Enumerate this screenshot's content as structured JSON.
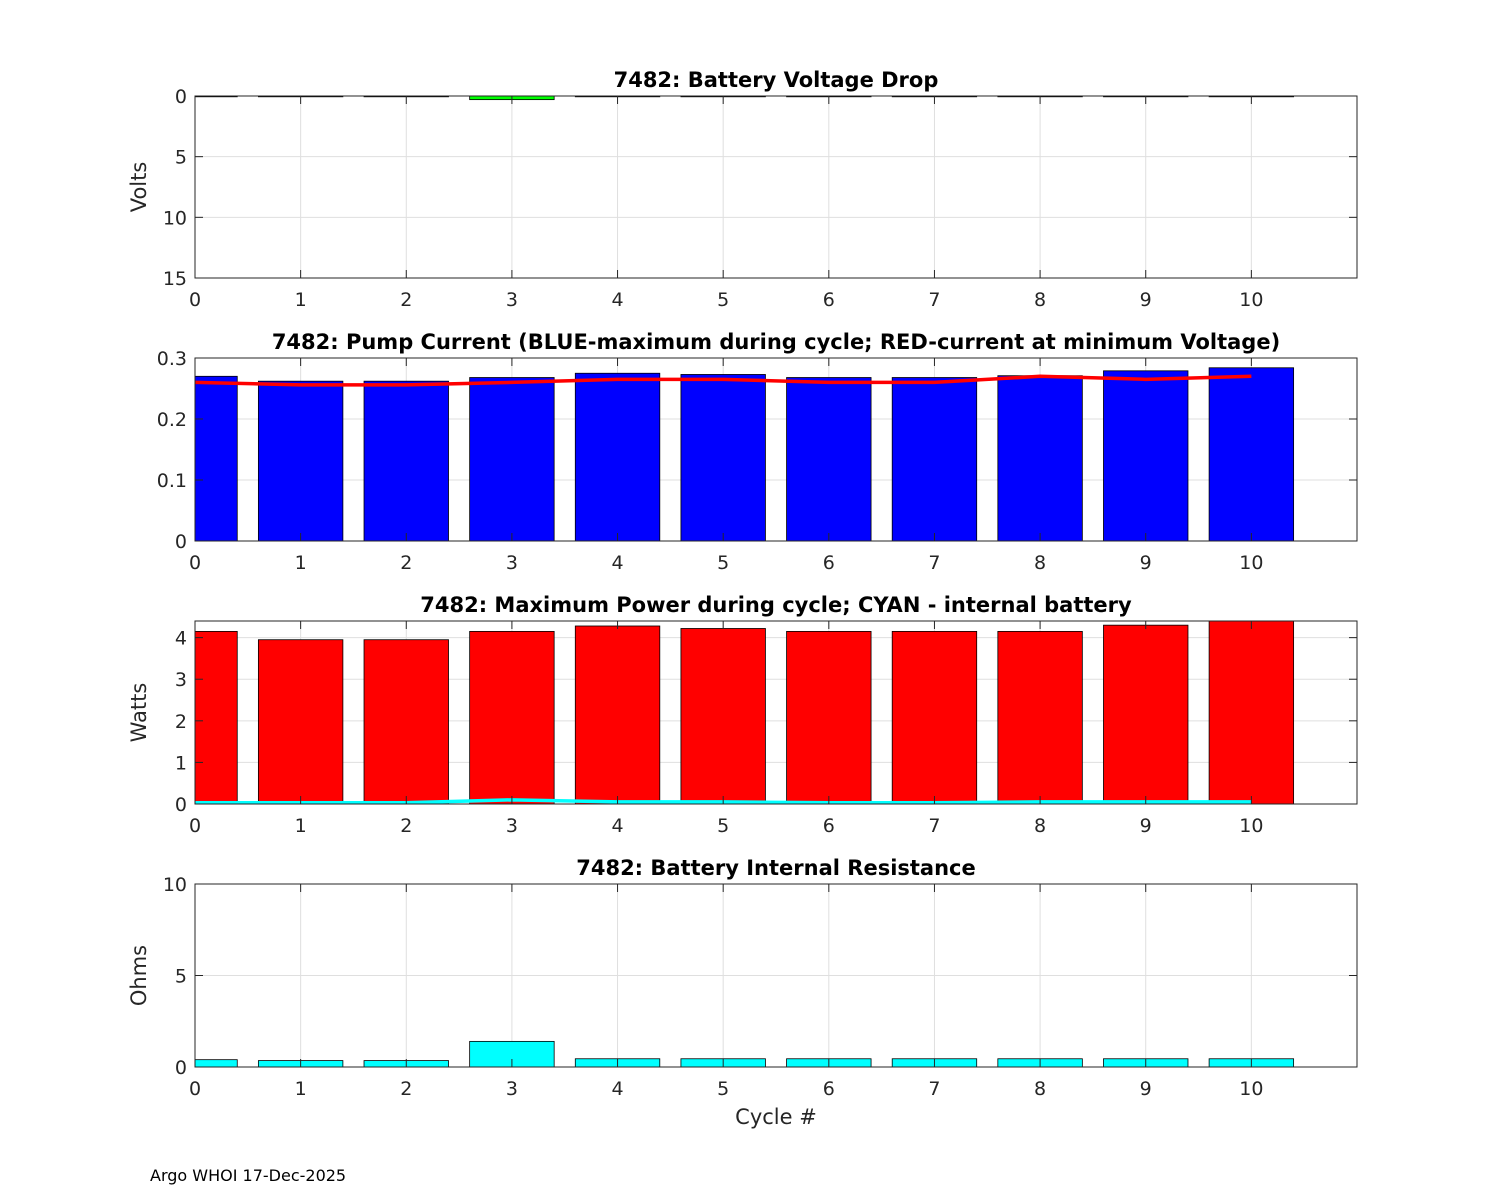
{
  "footer": "Argo WHOI 17-Dec-2025",
  "chart_data": [
    {
      "type": "bar",
      "title": "7482: Battery Voltage Drop",
      "xlabel": "",
      "ylabel": "Volts",
      "ylim": [
        0,
        15
      ],
      "y_reversed": true,
      "yticks": [
        "0",
        "5",
        "10",
        "15"
      ],
      "xticks": [
        "0",
        "1",
        "2",
        "3",
        "4",
        "5",
        "6",
        "7",
        "8",
        "9",
        "10"
      ],
      "grid": true,
      "categories": [
        0,
        1,
        2,
        3,
        4,
        5,
        6,
        7,
        8,
        9,
        10
      ],
      "series": [
        {
          "values": [
            0.05,
            0.05,
            0.05,
            0.3,
            0.05,
            0.05,
            0.05,
            0.05,
            0.05,
            0.05,
            0.05
          ],
          "color": "#00ff00"
        }
      ]
    },
    {
      "type": "bar",
      "title": "7482: Pump Current (BLUE-maximum during cycle; RED-current at minimum Voltage)",
      "xlabel": "",
      "ylabel": "",
      "ylim": [
        0,
        0.3
      ],
      "yticks": [
        "0",
        "0.1",
        "0.2",
        "0.3"
      ],
      "xticks": [
        "0",
        "1",
        "2",
        "3",
        "4",
        "5",
        "6",
        "7",
        "8",
        "9",
        "10"
      ],
      "grid": true,
      "categories": [
        0,
        1,
        2,
        3,
        4,
        5,
        6,
        7,
        8,
        9,
        10
      ],
      "series": [
        {
          "values": [
            0.27,
            0.262,
            0.262,
            0.268,
            0.275,
            0.273,
            0.268,
            0.268,
            0.271,
            0.279,
            0.284
          ],
          "color": "#0000ff"
        }
      ],
      "lines": [
        {
          "values": [
            0.26,
            0.256,
            0.256,
            0.26,
            0.265,
            0.265,
            0.26,
            0.26,
            0.27,
            0.265,
            0.27
          ],
          "color": "#ff0000"
        }
      ]
    },
    {
      "type": "bar",
      "title": "7482: Maximum Power during cycle; CYAN - internal battery",
      "xlabel": "",
      "ylabel": "Watts",
      "ylim": [
        0,
        4.4
      ],
      "yticks": [
        "0",
        "1",
        "2",
        "3",
        "4"
      ],
      "xticks": [
        "0",
        "1",
        "2",
        "3",
        "4",
        "5",
        "6",
        "7",
        "8",
        "9",
        "10"
      ],
      "grid": true,
      "categories": [
        0,
        1,
        2,
        3,
        4,
        5,
        6,
        7,
        8,
        9,
        10
      ],
      "series": [
        {
          "values": [
            4.15,
            3.95,
            3.95,
            4.15,
            4.28,
            4.22,
            4.15,
            4.15,
            4.15,
            4.3,
            4.4
          ],
          "color": "#ff0000"
        }
      ],
      "lines": [
        {
          "values": [
            0.03,
            0.03,
            0.03,
            0.1,
            0.05,
            0.05,
            0.03,
            0.03,
            0.05,
            0.05,
            0.05
          ],
          "color": "#00ffff"
        }
      ]
    },
    {
      "type": "bar",
      "title": "7482: Battery Internal Resistance",
      "xlabel": "Cycle #",
      "ylabel": "Ohms",
      "ylim": [
        0,
        10
      ],
      "yticks": [
        "0",
        "5",
        "10"
      ],
      "xticks": [
        "0",
        "1",
        "2",
        "3",
        "4",
        "5",
        "6",
        "7",
        "8",
        "9",
        "10"
      ],
      "grid": true,
      "categories": [
        0,
        1,
        2,
        3,
        4,
        5,
        6,
        7,
        8,
        9,
        10
      ],
      "series": [
        {
          "values": [
            0.4,
            0.35,
            0.35,
            1.4,
            0.45,
            0.45,
            0.45,
            0.45,
            0.45,
            0.45,
            0.45
          ],
          "color": "#00ffff"
        }
      ]
    }
  ]
}
